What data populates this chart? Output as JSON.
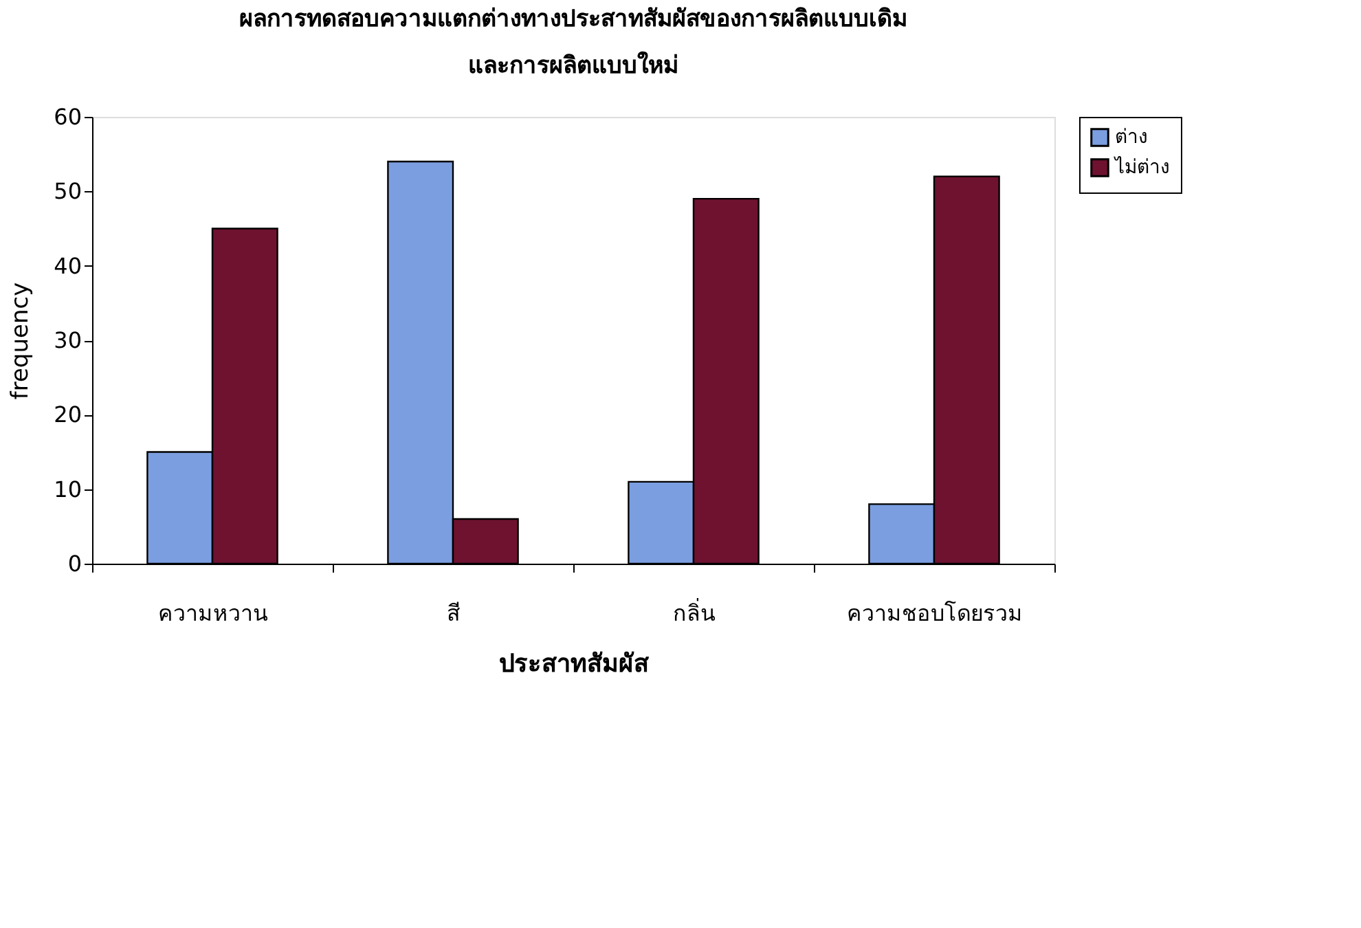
{
  "chart_data": {
    "type": "bar",
    "title": "ผลการทดสอบความแตกต่างทางประสาทสัมผัสของการผลิตแบบเดิม\nและการผลิตแบบใหม่",
    "xlabel": "ประสาทสัมผัส",
    "ylabel": "frequency",
    "categories": [
      "ความหวาน",
      "สี",
      "กลิ่น",
      "ความชอบโดยรวม"
    ],
    "series": [
      {
        "name": "ต่าง",
        "color": "#7b9ee0",
        "values": [
          15,
          54,
          11,
          8
        ]
      },
      {
        "name": "ไม่ต่าง",
        "color": "#6e1230",
        "values": [
          45,
          6,
          49,
          52
        ]
      }
    ],
    "ylim": [
      0,
      60
    ],
    "yticks": [
      0,
      10,
      20,
      30,
      40,
      50,
      60
    ],
    "grid": false,
    "legend": "right"
  }
}
